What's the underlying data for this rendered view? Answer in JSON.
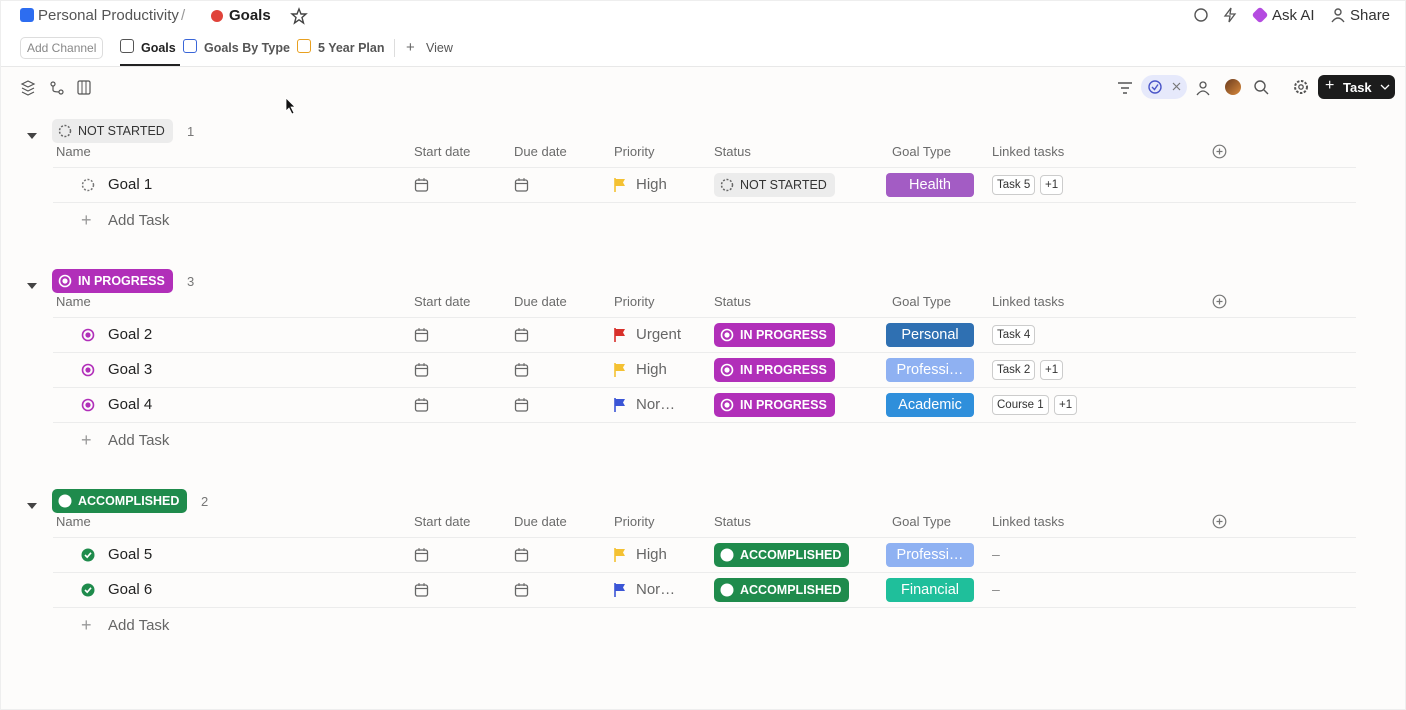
{
  "breadcrumb": {
    "space": "Personal Productivity",
    "separator": "/",
    "list": "Goals"
  },
  "top_actions": [
    "Ask AI",
    "Share"
  ],
  "tabs": {
    "add_channel": "Add Channel",
    "views": [
      "Goals",
      "Goals By Type",
      "5 Year Plan"
    ],
    "add_view": "View"
  },
  "toolbar": {
    "new_button": "Task"
  },
  "columns": [
    "Name",
    "Start date",
    "Due date",
    "Priority",
    "Status",
    "Goal Type",
    "Linked tasks"
  ],
  "add_task": "Add Task",
  "empty_cell": "–",
  "groups": [
    {
      "status": "NOT STARTED",
      "count": 1,
      "color": "#ececec",
      "text_color": "#333333",
      "rows": [
        {
          "name": "Goal 1",
          "priority": "High",
          "priority_color": "#f4c132",
          "status": "NOT STARTED",
          "goal_type": "Health",
          "goal_type_color": "#a35cc4",
          "linked_tasks": [
            "Task 5",
            "+1"
          ]
        }
      ]
    },
    {
      "status": "IN PROGRESS",
      "count": 3,
      "color": "#b12fb9",
      "text_color": "#ffffff",
      "rows": [
        {
          "name": "Goal 2",
          "priority": "Urgent",
          "priority_color": "#d8302a",
          "status": "IN PROGRESS",
          "goal_type": "Personal",
          "goal_type_color": "#2f70b2",
          "linked_tasks": [
            "Task 4"
          ]
        },
        {
          "name": "Goal 3",
          "priority": "High",
          "priority_color": "#f4c132",
          "status": "IN PROGRESS",
          "goal_type": "Professi…",
          "goal_type_color": "#8fb1f2",
          "linked_tasks": [
            "Task 2",
            "+1"
          ]
        },
        {
          "name": "Goal 4",
          "priority": "Nor…",
          "priority_color": "#3b55d6",
          "status": "IN PROGRESS",
          "goal_type": "Academic",
          "goal_type_color": "#2f8fdb",
          "linked_tasks": [
            "Course 1",
            "+1"
          ]
        }
      ]
    },
    {
      "status": "ACCOMPLISHED",
      "count": 2,
      "color": "#1f8b4c",
      "text_color": "#ffffff",
      "rows": [
        {
          "name": "Goal 5",
          "priority": "High",
          "priority_color": "#f4c132",
          "status": "ACCOMPLISHED",
          "goal_type": "Professi…",
          "goal_type_color": "#8fb1f2",
          "linked_tasks": null
        },
        {
          "name": "Goal 6",
          "priority": "Nor…",
          "priority_color": "#3b55d6",
          "status": "ACCOMPLISHED",
          "goal_type": "Financial",
          "goal_type_color": "#1fbf9b",
          "linked_tasks": null
        }
      ]
    }
  ]
}
